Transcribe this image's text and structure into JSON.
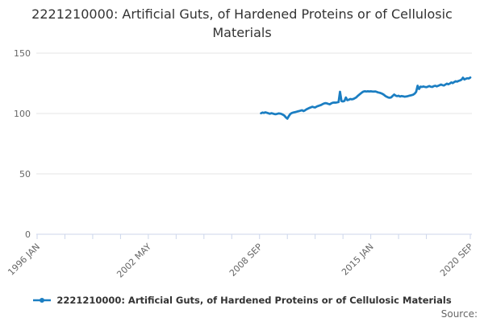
{
  "title": "2221210000: Artificial Guts, of Hardened Proteins or of Cellulosic Materials",
  "source_label": "Source:",
  "legend": {
    "label": "2221210000: Artificial Guts, of Hardened Proteins or of Cellulosic Materials"
  },
  "colors": {
    "series": "#1b7ec2",
    "grid": "#e6e6e6",
    "axis": "#ccd6eb",
    "label": "#666666",
    "title": "#333333"
  },
  "chart_data": {
    "type": "line",
    "title": "2221210000: Artificial Guts, of Hardened Proteins or of Cellulosic Materials",
    "xlabel": "",
    "ylabel": "",
    "grid": "horizontal",
    "legend_position": "bottom",
    "x_axis_start": "1996-01",
    "x_axis_end": "2020-09",
    "x_minor_tick_interval_months": 19,
    "x_tick_labels": [
      {
        "m": 0,
        "label": "1996 JAN"
      },
      {
        "m": 76,
        "label": "2002 MAY"
      },
      {
        "m": 152,
        "label": "2008 SEP"
      },
      {
        "m": 228,
        "label": "2015 JAN"
      },
      {
        "m": 296,
        "label": "2020 SEP"
      }
    ],
    "y_ticks": [
      0,
      50,
      100,
      150
    ],
    "ylim": [
      0,
      160
    ],
    "x_start": "2008-10",
    "x_interval": "month",
    "series": [
      {
        "name": "2221210000: Artificial Guts, of Hardened Proteins or of Cellulosic Materials",
        "values": [
          100.2,
          100.8,
          100.5,
          101.0,
          100.6,
          100.2,
          99.8,
          100.3,
          100.0,
          99.6,
          99.4,
          99.7,
          100.1,
          99.9,
          99.6,
          99.0,
          98.2,
          96.8,
          95.7,
          97.8,
          99.6,
          100.4,
          100.8,
          101.1,
          101.4,
          101.7,
          102.0,
          102.4,
          102.7,
          102.0,
          102.6,
          103.4,
          104.0,
          104.6,
          105.1,
          105.6,
          105.2,
          105.0,
          105.7,
          106.2,
          106.6,
          107.1,
          107.7,
          108.3,
          108.6,
          108.4,
          107.9,
          107.6,
          108.4,
          108.9,
          109.1,
          109.0,
          109.2,
          109.5,
          118.0,
          110.2,
          110.0,
          110.5,
          113.3,
          111.0,
          111.4,
          112.0,
          111.7,
          112.0,
          112.6,
          113.3,
          114.5,
          115.5,
          116.5,
          117.5,
          118.2,
          118.4,
          118.2,
          118.4,
          118.3,
          118.4,
          118.3,
          118.2,
          118.3,
          117.9,
          117.5,
          117.2,
          116.8,
          116.3,
          115.5,
          114.5,
          113.8,
          113.3,
          113.1,
          113.4,
          114.6,
          115.7,
          114.8,
          114.4,
          114.7,
          114.1,
          114.5,
          114.3,
          113.9,
          114.1,
          114.3,
          114.6,
          114.9,
          115.2,
          115.6,
          116.5,
          118.0,
          123.0,
          120.3,
          122.3,
          122.0,
          122.4,
          122.0,
          121.8,
          122.3,
          122.7,
          122.2,
          122.0,
          122.6,
          123.0,
          122.5,
          122.9,
          123.4,
          124.0,
          123.5,
          123.2,
          124.0,
          124.7,
          124.2,
          124.8,
          125.7,
          125.2,
          126.0,
          126.7,
          126.4,
          127.0,
          127.4,
          128.0,
          129.7,
          128.2,
          128.8,
          129.2,
          129.0,
          129.8
        ]
      }
    ]
  }
}
